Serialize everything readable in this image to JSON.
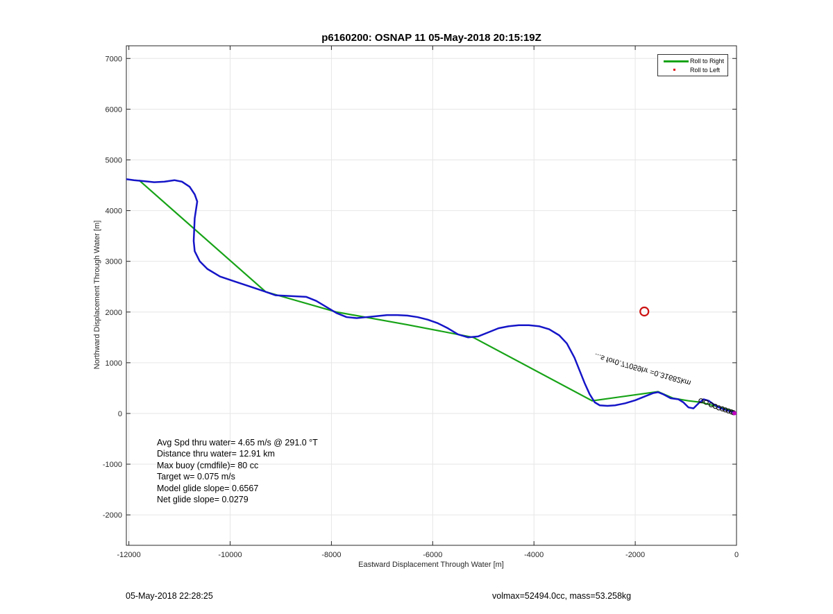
{
  "chart_data": {
    "type": "line",
    "title": "p6160200: OSNAP 11 05-May-2018 20:15:19Z",
    "xlabel": "Eastward Displacement Through Water [m]",
    "ylabel": "Northward Displacement Through Water [m]",
    "xlim": [
      -12050,
      0
    ],
    "ylim": [
      -2600,
      7250
    ],
    "xticks": [
      -12000,
      -10000,
      -8000,
      -6000,
      -4000,
      -2000,
      0
    ],
    "yticks": [
      -2000,
      -1000,
      0,
      1000,
      2000,
      3000,
      4000,
      5000,
      6000,
      7000
    ],
    "grid": true,
    "legend_placement": "top-right",
    "legend": [
      "Roll to Right",
      "Roll to Left"
    ],
    "colors": {
      "track": "#1515c8",
      "roll_right": "#17a317",
      "roll_left": "#e01010",
      "target": "#cc1010",
      "end": "#c000c0"
    },
    "series": [
      {
        "name": "Roll to Right",
        "x": [
          -11800,
          -9300,
          -7900,
          -6500,
          -5200,
          -2850,
          -1550,
          -1250,
          -950,
          -700,
          -550,
          -400,
          -250,
          -100,
          0
        ],
        "y": [
          4600,
          2400,
          2000,
          1750,
          1500,
          250,
          430,
          300,
          250,
          220,
          180,
          140,
          100,
          60,
          0
        ]
      },
      {
        "name": "",
        "x": [
          -12050,
          -11900,
          -11700,
          -11500,
          -11300,
          -11100,
          -10950,
          -10800,
          -10700,
          -10650,
          -10700,
          -10720,
          -10700,
          -10600,
          -10450,
          -10200,
          -9900,
          -9600,
          -9300,
          -9100,
          -8900,
          -8700,
          -8500,
          -8300,
          -8100,
          -7900,
          -7700,
          -7500,
          -7300,
          -7100,
          -6900,
          -6700,
          -6500,
          -6300,
          -6100,
          -5900,
          -5700,
          -5500,
          -5300,
          -5100,
          -4900,
          -4700,
          -4500,
          -4300,
          -4100,
          -3900,
          -3700,
          -3500,
          -3350,
          -3200,
          -3100,
          -3000,
          -2900,
          -2800,
          -2700,
          -2550,
          -2400,
          -2200,
          -2000,
          -1800,
          -1650,
          -1550,
          -1450,
          -1300,
          -1150,
          -1050,
          -950,
          -850,
          -750,
          -650,
          -550,
          -450,
          -350,
          -250,
          -150,
          -50,
          0
        ],
        "y": [
          4620,
          4600,
          4580,
          4560,
          4570,
          4600,
          4570,
          4470,
          4320,
          4180,
          3850,
          3400,
          3200,
          3000,
          2850,
          2700,
          2600,
          2500,
          2400,
          2330,
          2320,
          2310,
          2300,
          2220,
          2100,
          1980,
          1900,
          1880,
          1900,
          1920,
          1940,
          1940,
          1930,
          1900,
          1850,
          1780,
          1680,
          1560,
          1500,
          1520,
          1600,
          1680,
          1720,
          1740,
          1740,
          1720,
          1660,
          1540,
          1380,
          1100,
          850,
          600,
          380,
          220,
          160,
          150,
          160,
          200,
          260,
          340,
          400,
          420,
          380,
          300,
          280,
          220,
          120,
          100,
          200,
          280,
          250,
          180,
          120,
          80,
          50,
          20,
          0
        ]
      },
      {
        "name": "Roll to Left",
        "x": [],
        "y": []
      }
    ],
    "target": {
      "x": -1820,
      "y": 2010
    },
    "annotation": "...s for0.77059hr =0.31682km",
    "stats": [
      "Avg Spd thru water=  4.65 m/s @ 291.0 °T",
      "Distance thru water= 12.91 km",
      "Max buoy (cmdfile)= 80 cc",
      "Target w= 0.075 m/s",
      "Model glide slope= 0.6567",
      "Net glide slope= 0.0279"
    ]
  },
  "footer": {
    "timestamp": "05-May-2018 22:28:25",
    "vol_mass": "volmax=52494.0cc, mass=53.258kg"
  }
}
